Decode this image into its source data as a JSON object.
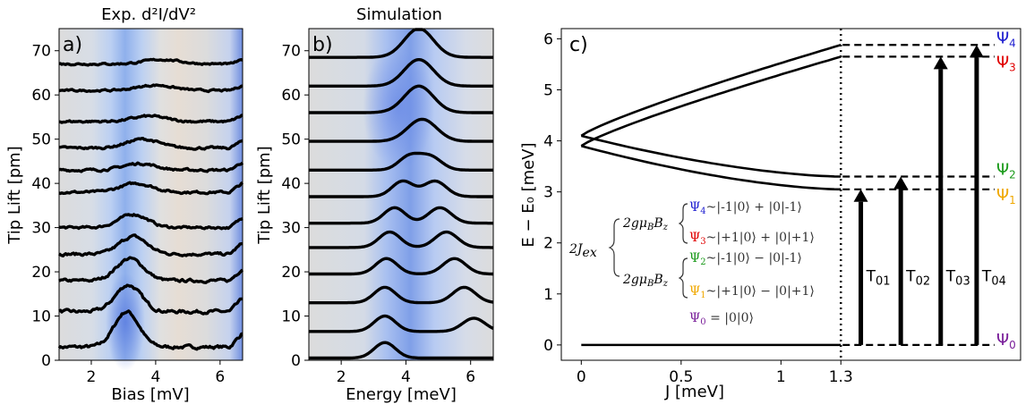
{
  "chart_data": [
    {
      "type": "line",
      "panel_tag": "a)",
      "title": "Exp. d²I/dV²",
      "xlabel": "Bias [mV]",
      "ylabel": "Tip Lift [pm]",
      "xlim": [
        1.0,
        6.7
      ],
      "ylim": [
        0,
        75
      ],
      "xticks": [
        "2",
        "4",
        "6"
      ],
      "yticks": [
        "0",
        "10",
        "20",
        "30",
        "40",
        "50",
        "60",
        "70"
      ],
      "background": "heatmap",
      "series": [
        {
          "offset": 3,
          "peaks": [
            {
              "x": 3.1,
              "amp": 8.0,
              "w": 0.38
            }
          ],
          "noise": 0.7
        },
        {
          "offset": 11,
          "peaks": [
            {
              "x": 3.15,
              "amp": 6.0,
              "w": 0.4
            }
          ],
          "noise": 0.7
        },
        {
          "offset": 18,
          "peaks": [
            {
              "x": 3.2,
              "amp": 5.0,
              "w": 0.42
            }
          ],
          "noise": 0.6
        },
        {
          "offset": 24,
          "peaks": [
            {
              "x": 3.3,
              "amp": 4.0,
              "w": 0.42
            }
          ],
          "noise": 0.6
        },
        {
          "offset": 30,
          "peaks": [
            {
              "x": 3.3,
              "amp": 3.0,
              "w": 0.45
            }
          ],
          "noise": 0.5
        },
        {
          "offset": 38,
          "peaks": [
            {
              "x": 3.4,
              "amp": 2.0,
              "w": 0.5
            }
          ],
          "noise": 0.5
        },
        {
          "offset": 43,
          "peaks": [
            {
              "x": 3.5,
              "amp": 1.5,
              "w": 0.5
            }
          ],
          "noise": 0.5
        },
        {
          "offset": 48,
          "peaks": [
            {
              "x": 3.6,
              "amp": 2.0,
              "w": 0.5
            }
          ],
          "noise": 0.5
        },
        {
          "offset": 54,
          "peaks": [
            {
              "x": 3.8,
              "amp": 1.2,
              "w": 0.5
            }
          ],
          "noise": 0.5
        },
        {
          "offset": 61,
          "peaks": [
            {
              "x": 4.0,
              "amp": 1.2,
              "w": 0.55
            }
          ],
          "noise": 0.4
        },
        {
          "offset": 67,
          "peaks": [
            {
              "x": 4.2,
              "amp": 1.0,
              "w": 0.55
            }
          ],
          "noise": 0.4
        }
      ]
    },
    {
      "type": "line",
      "panel_tag": "b)",
      "title": "Simulation",
      "xlabel": "Energy [meV]",
      "ylabel": "Tip Lift [pm]",
      "xlim": [
        1.0,
        6.7
      ],
      "ylim": [
        0,
        75
      ],
      "xticks": [
        "2",
        "4",
        "6"
      ],
      "yticks": [
        "0",
        "10",
        "20",
        "30",
        "40",
        "50",
        "60",
        "70"
      ],
      "background": "heatmap",
      "series": [
        {
          "offset": 0.5,
          "peaks": [
            {
              "x": 3.35,
              "amp": 3.5,
              "w": 0.33
            }
          ]
        },
        {
          "offset": 6.5,
          "peaks": [
            {
              "x": 3.35,
              "amp": 3.5,
              "w": 0.33
            },
            {
              "x": 6.1,
              "amp": 3.0,
              "w": 0.35
            }
          ]
        },
        {
          "offset": 13,
          "peaks": [
            {
              "x": 3.35,
              "amp": 3.5,
              "w": 0.33
            },
            {
              "x": 5.8,
              "amp": 3.5,
              "w": 0.35
            }
          ]
        },
        {
          "offset": 19.5,
          "peaks": [
            {
              "x": 3.4,
              "amp": 3.5,
              "w": 0.33
            },
            {
              "x": 5.5,
              "amp": 3.5,
              "w": 0.35
            }
          ]
        },
        {
          "offset": 25.5,
          "peaks": [
            {
              "x": 3.5,
              "amp": 3.5,
              "w": 0.33
            },
            {
              "x": 5.25,
              "amp": 3.5,
              "w": 0.35
            }
          ]
        },
        {
          "offset": 31,
          "peaks": [
            {
              "x": 3.65,
              "amp": 3.5,
              "w": 0.33
            },
            {
              "x": 5.05,
              "amp": 3.5,
              "w": 0.35
            }
          ]
        },
        {
          "offset": 37,
          "peaks": [
            {
              "x": 3.9,
              "amp": 3.5,
              "w": 0.33
            },
            {
              "x": 4.9,
              "amp": 3.5,
              "w": 0.35
            }
          ]
        },
        {
          "offset": 43,
          "peaks": [
            {
              "x": 4.1,
              "amp": 3.0,
              "w": 0.33
            },
            {
              "x": 4.75,
              "amp": 3.0,
              "w": 0.35
            }
          ]
        },
        {
          "offset": 49.5,
          "peaks": [
            {
              "x": 4.5,
              "amp": 5.0,
              "w": 0.45
            }
          ]
        },
        {
          "offset": 56,
          "peaks": [
            {
              "x": 4.4,
              "amp": 6.0,
              "w": 0.45
            }
          ]
        },
        {
          "offset": 62,
          "peaks": [
            {
              "x": 4.4,
              "amp": 6.0,
              "w": 0.45
            }
          ]
        },
        {
          "offset": 68.5,
          "peaks": [
            {
              "x": 4.4,
              "amp": 6.5,
              "w": 0.45
            }
          ]
        }
      ]
    },
    {
      "type": "line",
      "panel_tag": "c)",
      "xlabel": "J [meV]",
      "ylabel": "E − E₀ [meV]",
      "xlim": [
        -0.1,
        2.2
      ],
      "ylim": [
        -0.3,
        6.2
      ],
      "xticks": [
        {
          "value": 0,
          "label": "0"
        },
        {
          "value": 0.5,
          "label": "0.5"
        },
        {
          "value": 1,
          "label": "1"
        },
        {
          "value": 1.3,
          "label": "1.3"
        }
      ],
      "yticks": [
        0,
        1,
        2,
        3,
        4,
        5,
        6
      ],
      "vline_x": 1.3,
      "levels_at_vline": {
        "psi0": 0.0,
        "psi1": 3.05,
        "psi2": 3.3,
        "psi3": 5.65,
        "psi4": 5.88
      },
      "levels_at_zero": {
        "psi1": 3.9,
        "psi2": 3.9,
        "psi3": 4.1,
        "psi4": 4.1
      },
      "transitions": [
        {
          "label": "T01",
          "x": 1.4,
          "to": 3.05
        },
        {
          "label": "T02",
          "x": 1.6,
          "to": 3.3
        },
        {
          "label": "T03",
          "x": 1.8,
          "to": 5.65
        },
        {
          "label": "T04",
          "x": 1.98,
          "to": 5.88
        }
      ],
      "states": [
        {
          "name": "Ψ4",
          "color": "#1f1fd0",
          "level": 5.88
        },
        {
          "name": "Ψ3",
          "color": "#e00000",
          "level": 5.65
        },
        {
          "name": "Ψ2",
          "color": "#1a9a1a",
          "level": 3.3
        },
        {
          "name": "Ψ1",
          "color": "#f0a800",
          "level": 3.05
        },
        {
          "name": "Ψ0",
          "color": "#7a1f9a",
          "level": 0.0
        }
      ],
      "inset": {
        "exchange": "2J",
        "exchange_sub": "ex",
        "zeeman": "2gμ",
        "zeeman_sub": "B",
        "zeeman_field": "B",
        "zeeman_field_sub": "z",
        "lines": [
          {
            "psi": "Ψ",
            "sub": "4",
            "color": "#1f1fd0",
            "text": "~|-1|0⟩ + |0|-1⟩"
          },
          {
            "psi": "Ψ",
            "sub": "3",
            "color": "#e00000",
            "text": "~|+1|0⟩ + |0|+1⟩"
          },
          {
            "psi": "Ψ",
            "sub": "2",
            "color": "#1a9a1a",
            "text": "~|-1|0⟩ − |0|-1⟩"
          },
          {
            "psi": "Ψ",
            "sub": "1",
            "color": "#f0a800",
            "text": "~|+1|0⟩ − |0|+1⟩"
          }
        ],
        "ground": {
          "psi": "Ψ",
          "sub": "0",
          "color": "#7a1f9a",
          "text": " = |0|0⟩"
        }
      }
    }
  ]
}
